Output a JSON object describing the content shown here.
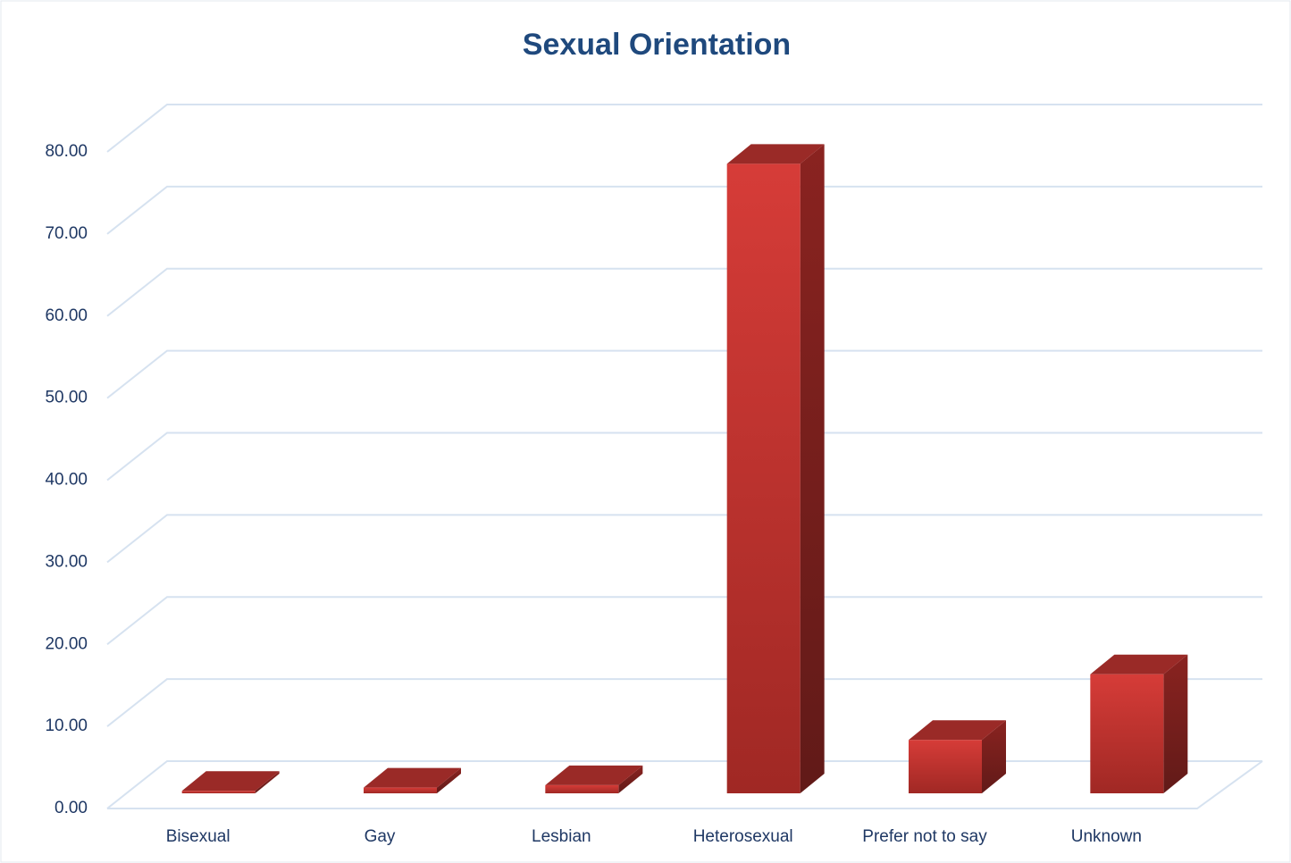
{
  "chart_data": {
    "type": "bar3d",
    "title": "Sexual Orientation",
    "categories": [
      "Bisexual",
      "Gay",
      "Lesbian",
      "Heterosexual",
      "Prefer not to say",
      "Unknown"
    ],
    "values": [
      0.3,
      0.7,
      1.0,
      76.7,
      6.5,
      14.5
    ],
    "color": "#c0302e",
    "ylim": [
      0,
      80
    ],
    "yticks": [
      {
        "value": 0,
        "label": "0.00"
      },
      {
        "value": 10,
        "label": "10.00"
      },
      {
        "value": 20,
        "label": "20.00"
      },
      {
        "value": 30,
        "label": "30.00"
      },
      {
        "value": 40,
        "label": "40.00"
      },
      {
        "value": 50,
        "label": "50.00"
      },
      {
        "value": 60,
        "label": "60.00"
      },
      {
        "value": 70,
        "label": "70.00"
      },
      {
        "value": 80,
        "label": "80.00"
      }
    ],
    "grid": true
  }
}
